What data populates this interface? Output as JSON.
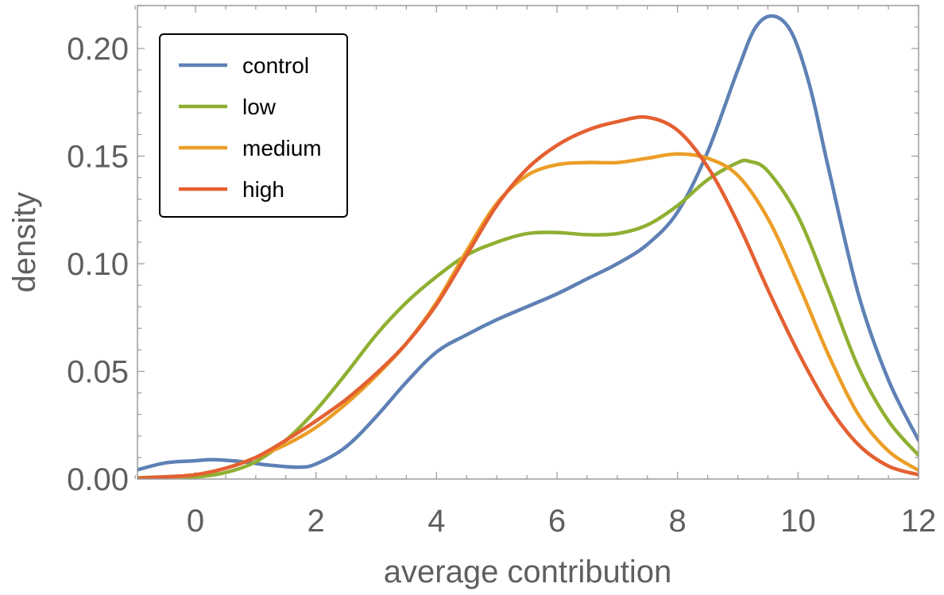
{
  "chart_data": {
    "type": "line",
    "xlabel": "average contribution",
    "ylabel": "density",
    "xlim": [
      -1,
      12
    ],
    "ylim": [
      0,
      0.22
    ],
    "xticks": [
      0,
      2,
      4,
      6,
      8,
      10,
      12
    ],
    "xtick_labels": [
      "0",
      "2",
      "4",
      "6",
      "8",
      "10",
      "12"
    ],
    "yticks": [
      0,
      0.05,
      0.1,
      0.15,
      0.2
    ],
    "ytick_labels": [
      "0.00",
      "0.05",
      "0.10",
      "0.15",
      "0.20"
    ],
    "grid": false,
    "legend_position": "top-left",
    "series": [
      {
        "name": "control",
        "color": "#5e81b5",
        "x": [
          -1,
          -0.5,
          0,
          0.3,
          0.8,
          1.2,
          1.7,
          2.0,
          2.5,
          3.0,
          3.5,
          4.0,
          4.5,
          5.0,
          5.5,
          6.0,
          6.5,
          7.0,
          7.5,
          8.0,
          8.5,
          9.0,
          9.3,
          9.6,
          9.9,
          10.2,
          10.5,
          11.0,
          11.5,
          12.0
        ],
        "y": [
          0.004,
          0.0075,
          0.0085,
          0.009,
          0.008,
          0.0065,
          0.0055,
          0.007,
          0.015,
          0.029,
          0.045,
          0.059,
          0.067,
          0.074,
          0.08,
          0.086,
          0.093,
          0.1,
          0.109,
          0.124,
          0.152,
          0.19,
          0.21,
          0.215,
          0.207,
          0.182,
          0.145,
          0.086,
          0.046,
          0.018
        ]
      },
      {
        "name": "low",
        "color": "#8fb032",
        "x": [
          -1,
          -0.5,
          0,
          0.5,
          1.0,
          1.5,
          2.0,
          2.5,
          3.0,
          3.5,
          4.0,
          4.5,
          5.0,
          5.5,
          6.0,
          6.5,
          7.0,
          7.5,
          8.0,
          8.5,
          9.0,
          9.2,
          9.5,
          10.0,
          10.5,
          11.0,
          11.5,
          12.0
        ],
        "y": [
          0.0005,
          0.001,
          0.001,
          0.003,
          0.008,
          0.018,
          0.032,
          0.049,
          0.067,
          0.082,
          0.094,
          0.104,
          0.11,
          0.114,
          0.1145,
          0.1135,
          0.114,
          0.118,
          0.127,
          0.139,
          0.147,
          0.1475,
          0.143,
          0.122,
          0.088,
          0.052,
          0.027,
          0.011
        ]
      },
      {
        "name": "medium",
        "color": "#eb9e27",
        "x": [
          -1,
          -0.5,
          0,
          0.5,
          1.0,
          1.5,
          2.0,
          2.5,
          3.0,
          3.5,
          4.0,
          4.5,
          5.0,
          5.5,
          6.0,
          6.5,
          7.0,
          7.5,
          8.0,
          8.5,
          9.0,
          9.5,
          10.0,
          10.5,
          11.0,
          11.5,
          12.0
        ],
        "y": [
          0.0003,
          0.0008,
          0.002,
          0.005,
          0.01,
          0.016,
          0.024,
          0.035,
          0.048,
          0.063,
          0.082,
          0.106,
          0.128,
          0.141,
          0.146,
          0.147,
          0.147,
          0.149,
          0.151,
          0.149,
          0.141,
          0.121,
          0.091,
          0.058,
          0.03,
          0.013,
          0.004
        ]
      },
      {
        "name": "high",
        "color": "#e46032",
        "x": [
          -1,
          -0.5,
          0,
          0.5,
          1.0,
          1.5,
          2.0,
          2.5,
          3.0,
          3.5,
          4.0,
          4.5,
          5.0,
          5.5,
          6.0,
          6.5,
          7.0,
          7.5,
          8.0,
          8.5,
          9.0,
          9.5,
          10.0,
          10.5,
          11.0,
          11.5,
          12.0
        ],
        "y": [
          0.0003,
          0.001,
          0.002,
          0.005,
          0.01,
          0.018,
          0.027,
          0.037,
          0.049,
          0.063,
          0.081,
          0.104,
          0.127,
          0.144,
          0.155,
          0.162,
          0.166,
          0.168,
          0.162,
          0.145,
          0.119,
          0.088,
          0.059,
          0.034,
          0.016,
          0.006,
          0.002
        ]
      }
    ]
  }
}
